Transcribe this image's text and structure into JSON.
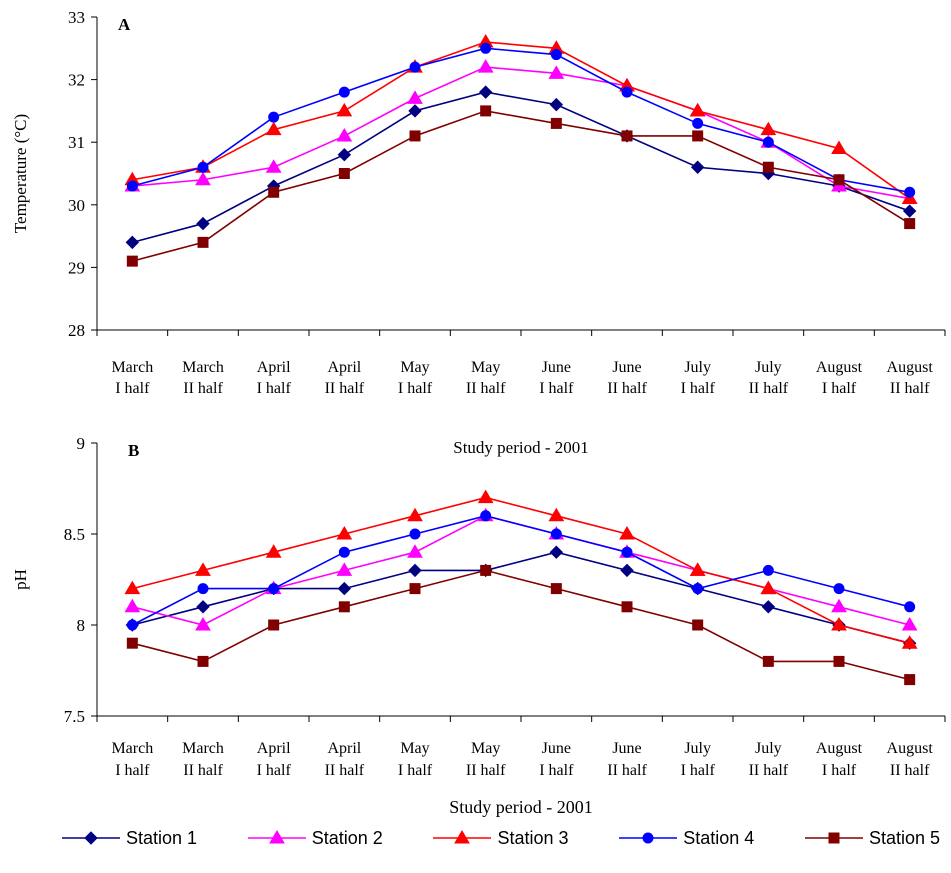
{
  "chart_data": [
    {
      "id": "A",
      "type": "line",
      "panel_label": "A",
      "ylabel": "Temperature (°C)",
      "xlabel": "",
      "ylim": [
        28,
        33
      ],
      "yticks": [
        "28",
        "29",
        "30",
        "31",
        "32",
        "33"
      ],
      "categories": [
        [
          "March",
          "I half"
        ],
        [
          "March",
          "II half"
        ],
        [
          "April",
          "I half"
        ],
        [
          "April",
          "II half"
        ],
        [
          "May",
          "I half"
        ],
        [
          "May",
          "II half"
        ],
        [
          "June",
          "I half"
        ],
        [
          "June",
          "II half"
        ],
        [
          "July",
          "I half"
        ],
        [
          "July",
          "II half"
        ],
        [
          "August",
          "I half"
        ],
        [
          "August",
          "II half"
        ]
      ],
      "series": [
        {
          "name": "Station 1",
          "values": [
            29.4,
            29.7,
            30.3,
            30.8,
            31.5,
            31.8,
            31.6,
            31.1,
            30.6,
            30.5,
            30.3,
            29.9
          ]
        },
        {
          "name": "Station 2",
          "values": [
            30.3,
            30.4,
            30.6,
            31.1,
            31.7,
            32.2,
            32.1,
            31.9,
            31.5,
            31.0,
            30.3,
            30.1
          ]
        },
        {
          "name": "Station 3",
          "values": [
            30.4,
            30.6,
            31.2,
            31.5,
            32.2,
            32.6,
            32.5,
            31.9,
            31.5,
            31.2,
            30.9,
            30.1
          ]
        },
        {
          "name": "Station 4",
          "values": [
            30.3,
            30.6,
            31.4,
            31.8,
            32.2,
            32.5,
            32.4,
            31.8,
            31.3,
            31.0,
            30.4,
            30.2
          ]
        },
        {
          "name": "Station 5",
          "values": [
            29.1,
            29.4,
            30.2,
            30.5,
            31.1,
            31.5,
            31.3,
            31.1,
            31.1,
            30.6,
            30.4,
            29.7
          ]
        }
      ]
    },
    {
      "id": "B",
      "type": "line",
      "panel_label": "B",
      "title": "Study period - 2001",
      "ylabel": "pH",
      "xlabel": "Study period - 2001",
      "ylim": [
        7.5,
        9
      ],
      "yticks": [
        "7.5",
        "8",
        "8.5",
        "9"
      ],
      "categories": [
        [
          "March",
          "I half"
        ],
        [
          "March",
          "II half"
        ],
        [
          "April",
          "I half"
        ],
        [
          "April",
          "II half"
        ],
        [
          "May",
          "I half"
        ],
        [
          "May",
          "II half"
        ],
        [
          "June",
          "I half"
        ],
        [
          "June",
          "II half"
        ],
        [
          "July",
          "I half"
        ],
        [
          "July",
          "II half"
        ],
        [
          "August",
          "I half"
        ],
        [
          "August",
          "II half"
        ]
      ],
      "series": [
        {
          "name": "Station 1",
          "values": [
            8.0,
            8.1,
            8.2,
            8.2,
            8.3,
            8.3,
            8.4,
            8.3,
            8.2,
            8.1,
            8.0,
            7.9
          ]
        },
        {
          "name": "Station 2",
          "values": [
            8.1,
            8.0,
            8.2,
            8.3,
            8.4,
            8.6,
            8.5,
            8.4,
            8.3,
            8.2,
            8.1,
            8.0
          ]
        },
        {
          "name": "Station 3",
          "values": [
            8.2,
            8.3,
            8.4,
            8.5,
            8.6,
            8.7,
            8.6,
            8.5,
            8.3,
            8.2,
            8.0,
            7.9
          ]
        },
        {
          "name": "Station 4",
          "values": [
            8.0,
            8.2,
            8.2,
            8.4,
            8.5,
            8.6,
            8.5,
            8.4,
            8.2,
            8.3,
            8.2,
            8.1
          ]
        },
        {
          "name": "Station 5",
          "values": [
            7.9,
            7.8,
            8.0,
            8.1,
            8.2,
            8.3,
            8.2,
            8.1,
            8.0,
            7.8,
            7.8,
            7.7
          ]
        }
      ]
    }
  ],
  "styles": [
    {
      "name": "Station 1",
      "color": "#000080",
      "marker": "diamond"
    },
    {
      "name": "Station 2",
      "color": "#ff00ff",
      "marker": "triangle"
    },
    {
      "name": "Station 3",
      "color": "#ff0000",
      "marker": "triangle"
    },
    {
      "name": "Station 4",
      "color": "#0000ff",
      "marker": "circle"
    },
    {
      "name": "Station 5",
      "color": "#800000",
      "marker": "square"
    }
  ],
  "legend": {
    "placement": "bottom",
    "items": [
      "Station 1",
      "Station 2",
      "Station 3",
      "Station 4",
      "Station 5"
    ]
  }
}
